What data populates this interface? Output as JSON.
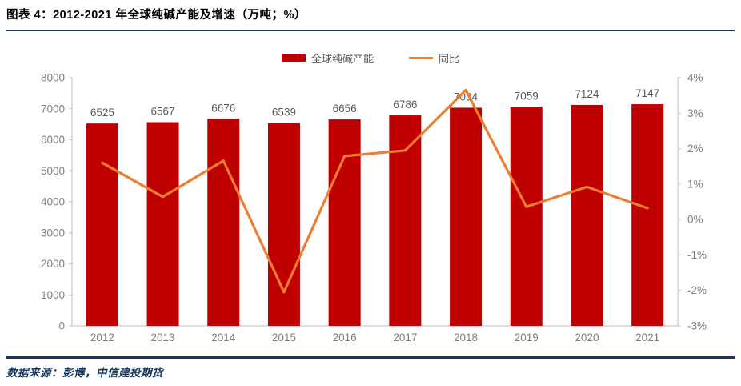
{
  "title": "图表 4：2012-2021 年全球纯碱产能及增速（万吨；%）",
  "source": "数据来源：彭博，中信建投期货",
  "legend": [
    {
      "label": "全球纯碱产能",
      "type": "bar",
      "color": "#C00000"
    },
    {
      "label": "同比",
      "type": "line",
      "color": "#ED7D31"
    }
  ],
  "colors": {
    "bar": "#C00000",
    "line": "#ED7D31",
    "axis": "#BFBFBF",
    "axis_label": "#7F7F7F",
    "bar_value_label": "#595959",
    "rule": "#17375E"
  },
  "chart_data": {
    "type": "bar",
    "categories": [
      "2012",
      "2013",
      "2014",
      "2015",
      "2016",
      "2017",
      "2018",
      "2019",
      "2020",
      "2021"
    ],
    "series": [
      {
        "name": "全球纯碱产能",
        "type": "bar",
        "axis": "left",
        "color": "#C00000",
        "values": [
          6525,
          6567,
          6676,
          6539,
          6656,
          6786,
          7034,
          7059,
          7124,
          7147
        ]
      },
      {
        "name": "同比",
        "type": "line",
        "axis": "right",
        "color": "#ED7D31",
        "values": [
          1.6,
          0.64,
          1.66,
          -2.05,
          1.79,
          1.95,
          3.65,
          0.36,
          0.92,
          0.32
        ]
      }
    ],
    "title": "图表 4：2012-2021 年全球纯碱产能及增速（万吨；%）",
    "xlabel": "",
    "ylabel_left": "万吨",
    "ylabel_right": "%",
    "left_axis": {
      "min": 0,
      "max": 8000,
      "step": 1000
    },
    "right_axis": {
      "min": -3,
      "max": 4,
      "step": 1,
      "suffix": "%"
    },
    "legend_position": "top",
    "grid": false,
    "bar_labels_shown": true
  }
}
